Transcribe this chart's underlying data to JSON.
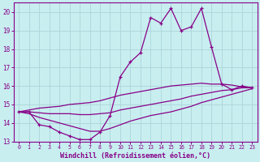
{
  "xlabel": "Windchill (Refroidissement éolien,°C)",
  "bg_color": "#c8eef0",
  "grid_color": "#b0d8dc",
  "line_color": "#880088",
  "x_hours": [
    0,
    1,
    2,
    3,
    4,
    5,
    6,
    7,
    8,
    9,
    10,
    11,
    12,
    13,
    14,
    15,
    16,
    17,
    18,
    19,
    20,
    21,
    22,
    23
  ],
  "temp_line": [
    14.6,
    14.6,
    13.9,
    13.8,
    13.5,
    13.3,
    13.1,
    13.1,
    13.5,
    14.4,
    16.5,
    17.3,
    17.8,
    19.7,
    19.4,
    20.2,
    19.0,
    19.2,
    20.2,
    18.1,
    16.1,
    15.8,
    16.0,
    15.9
  ],
  "upper_line": [
    14.6,
    14.7,
    14.8,
    14.85,
    14.9,
    15.0,
    15.05,
    15.1,
    15.2,
    15.35,
    15.5,
    15.6,
    15.7,
    15.8,
    15.9,
    16.0,
    16.05,
    16.1,
    16.15,
    16.1,
    16.1,
    16.05,
    15.95,
    15.9
  ],
  "mid_line": [
    14.6,
    14.6,
    14.55,
    14.5,
    14.5,
    14.5,
    14.45,
    14.45,
    14.5,
    14.55,
    14.7,
    14.8,
    14.9,
    15.0,
    15.1,
    15.2,
    15.3,
    15.45,
    15.55,
    15.65,
    15.75,
    15.8,
    15.9,
    15.9
  ],
  "lower_line": [
    14.6,
    14.5,
    14.3,
    14.15,
    14.0,
    13.85,
    13.7,
    13.55,
    13.55,
    13.7,
    13.9,
    14.1,
    14.25,
    14.4,
    14.5,
    14.6,
    14.75,
    14.9,
    15.1,
    15.25,
    15.4,
    15.55,
    15.7,
    15.85
  ],
  "ylim_min": 13.0,
  "ylim_max": 20.5,
  "yticks": [
    13,
    14,
    15,
    16,
    17,
    18,
    19,
    20
  ],
  "xticks": [
    0,
    1,
    2,
    3,
    4,
    5,
    6,
    7,
    8,
    9,
    10,
    11,
    12,
    13,
    14,
    15,
    16,
    17,
    18,
    19,
    20,
    21,
    22,
    23
  ],
  "xlabel_fontsize": 6.0,
  "tick_fontsize": 5.5,
  "xtick_fontsize": 4.8
}
